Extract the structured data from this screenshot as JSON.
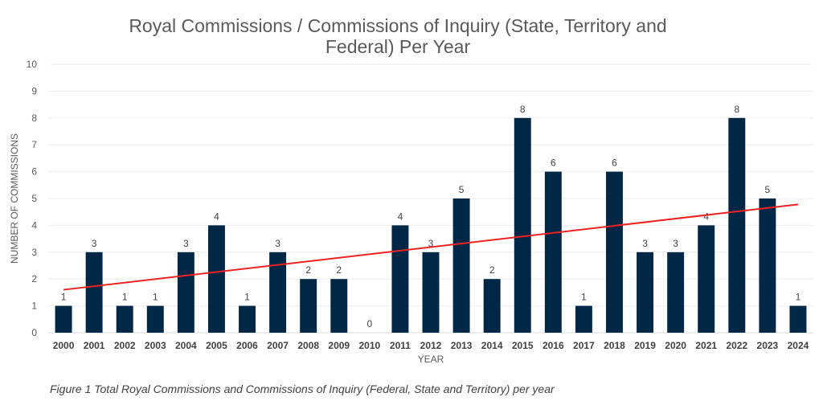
{
  "chart_data": {
    "type": "bar",
    "title_line1": "Royal Commissions / Commissions of Inquiry (State, Territory and",
    "title_line2": "Federal) Per Year",
    "xlabel": "YEAR",
    "ylabel": "NUMBER OF COMMISSIONS",
    "ylim": [
      0,
      10
    ],
    "yticks": [
      0,
      1,
      2,
      3,
      4,
      5,
      6,
      7,
      8,
      9,
      10
    ],
    "categories": [
      "2000",
      "2001",
      "2002",
      "2003",
      "2004",
      "2005",
      "2006",
      "2007",
      "2008",
      "2009",
      "2010",
      "2011",
      "2012",
      "2013",
      "2014",
      "2015",
      "2016",
      "2017",
      "2018",
      "2019",
      "2020",
      "2021",
      "2022",
      "2023",
      "2024"
    ],
    "values": [
      1,
      3,
      1,
      1,
      3,
      4,
      1,
      3,
      2,
      2,
      0,
      4,
      3,
      5,
      2,
      8,
      6,
      1,
      6,
      3,
      3,
      4,
      8,
      5,
      1
    ],
    "trendline": {
      "type": "linear",
      "start_value": 1.6,
      "end_value": 4.78
    },
    "grid": true,
    "legend": "none",
    "bar_color": "#002846",
    "trend_color": "#ee2222"
  },
  "caption": "Figure 1 Total Royal Commissions and Commissions of Inquiry (Federal, State and Territory) per year"
}
